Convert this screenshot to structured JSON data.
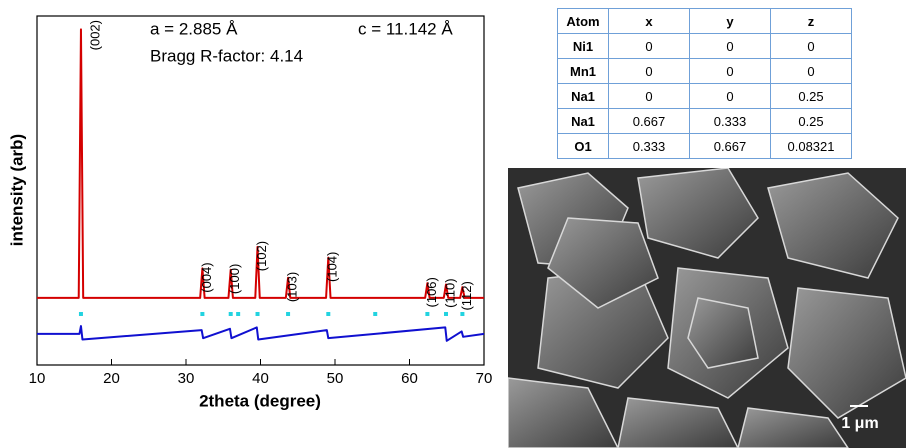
{
  "chart_data": {
    "type": "line",
    "xlabel": "2theta (degree)",
    "ylabel": "intensity (arb)",
    "xlim": [
      10,
      70
    ],
    "xticks": [
      10,
      20,
      30,
      40,
      50,
      60,
      70
    ],
    "ylim": [
      -25,
      105
    ],
    "annotations": [
      "a = 2.885 Å",
      "c = 11.142 Å",
      "Bragg R-factor:  4.14"
    ],
    "peak_labels": [
      {
        "text": "(002)",
        "x": 15.9,
        "y": 100
      },
      {
        "text": "(004)",
        "x": 32.2,
        "y": 11
      },
      {
        "text": "(100)",
        "x": 36.0,
        "y": 10.5
      },
      {
        "text": "(102)",
        "x": 39.6,
        "y": 19
      },
      {
        "text": "(103)",
        "x": 43.7,
        "y": 7.5
      },
      {
        "text": "(104)",
        "x": 49.1,
        "y": 15
      },
      {
        "text": "(106)",
        "x": 62.4,
        "y": 5.5
      },
      {
        "text": "(110)",
        "x": 64.9,
        "y": 5
      },
      {
        "text": "(112)",
        "x": 67.1,
        "y": 4
      }
    ],
    "series": [
      {
        "color": "#d40000",
        "kind": "line",
        "x": [
          10,
          15.6,
          15.9,
          16.2,
          31.9,
          32.2,
          32.5,
          35.7,
          36.0,
          36.3,
          39.3,
          39.6,
          39.9,
          43.4,
          43.7,
          44.0,
          48.8,
          49.1,
          49.4,
          62.1,
          62.4,
          62.7,
          64.6,
          64.9,
          65.2,
          66.8,
          67.1,
          67.4,
          70
        ],
        "values": [
          0,
          0,
          100,
          0,
          0,
          11,
          0,
          0,
          10.5,
          0,
          0,
          19,
          0,
          0,
          7.5,
          0,
          0,
          15,
          0,
          0,
          5.5,
          0,
          0,
          5,
          0,
          0,
          4,
          0,
          0
        ]
      },
      {
        "color": "#1010d0",
        "kind": "line",
        "x": [
          10,
          15.7,
          15.9,
          16.1,
          32.1,
          32.3,
          35.9,
          36.1,
          39.5,
          39.7,
          48.9,
          49.1,
          64.8,
          65.0,
          67.0,
          67.2,
          70
        ],
        "values": [
          -13.4,
          -13.4,
          -10.5,
          -15.5,
          -12,
          -15,
          -11.5,
          -15,
          -11,
          -15.5,
          -12,
          -15,
          -11,
          -16,
          -12.5,
          -14.5,
          -13.4
        ]
      },
      {
        "color": "#22d3e0",
        "kind": "scatter",
        "x": [
          15.9,
          32.2,
          36.0,
          37.0,
          39.6,
          43.7,
          49.1,
          55.4,
          62.4,
          64.9,
          67.1
        ],
        "values": [
          -6,
          -6,
          -6,
          -6,
          -6,
          -6,
          -6,
          -6,
          -6,
          -6,
          -6
        ]
      }
    ]
  },
  "table": {
    "header": [
      "Atom",
      "x",
      "y",
      "z"
    ],
    "rows": [
      [
        "Ni1",
        "0",
        "0",
        "0"
      ],
      [
        "Mn1",
        "0",
        "0",
        "0"
      ],
      [
        "Na1",
        "0",
        "0",
        "0.25"
      ],
      [
        "Na1",
        "0.667",
        "0.333",
        "0.25"
      ],
      [
        "O1",
        "0.333",
        "0.667",
        "0.08321"
      ]
    ]
  },
  "image": {
    "scale_bar": "1 μm"
  }
}
